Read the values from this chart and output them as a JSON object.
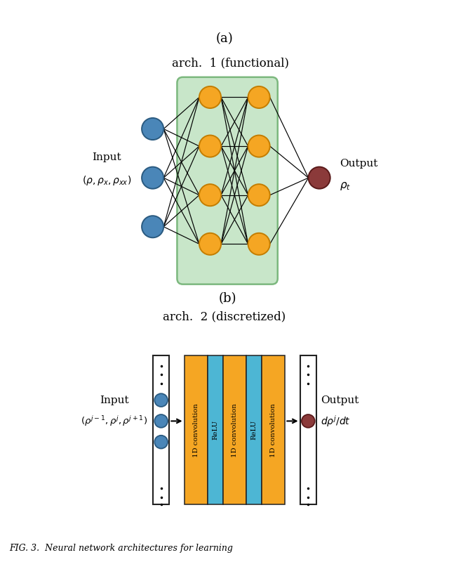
{
  "title_a": "(a)",
  "title_b": "(b)",
  "arch1_title": "arch.  1 (functional)",
  "arch2_title": "arch.  2 (discretized)",
  "input1_label": "Input",
  "input1_formula": "$(\\rho, \\rho_x, \\rho_{xx})$",
  "output1_label": "Output",
  "output1_formula": "$\\rho_t$",
  "input2_label": "Input",
  "input2_formula": "$(\\rho^{j-1}, \\rho^j, \\rho^{j+1})$",
  "output2_label": "Output",
  "output2_formula": "$d\\rho^j/dt$",
  "fig_caption": "FIG. 3.  Neural network architectures for learning",
  "node_color_input": "#4a86b8",
  "node_color_input_edge": "#2a5a80",
  "node_color_hidden": "#f5a623",
  "node_color_hidden_edge": "#c47d00",
  "node_color_output": "#8b3a3a",
  "node_color_output_edge": "#5a1a1a",
  "green_box_color": "#c8e6c9",
  "green_box_edge": "#7cb87e",
  "conv_color": "#f5a623",
  "relu_color": "#4db6d4",
  "white_box_edge": "#222222",
  "background": "#ffffff"
}
